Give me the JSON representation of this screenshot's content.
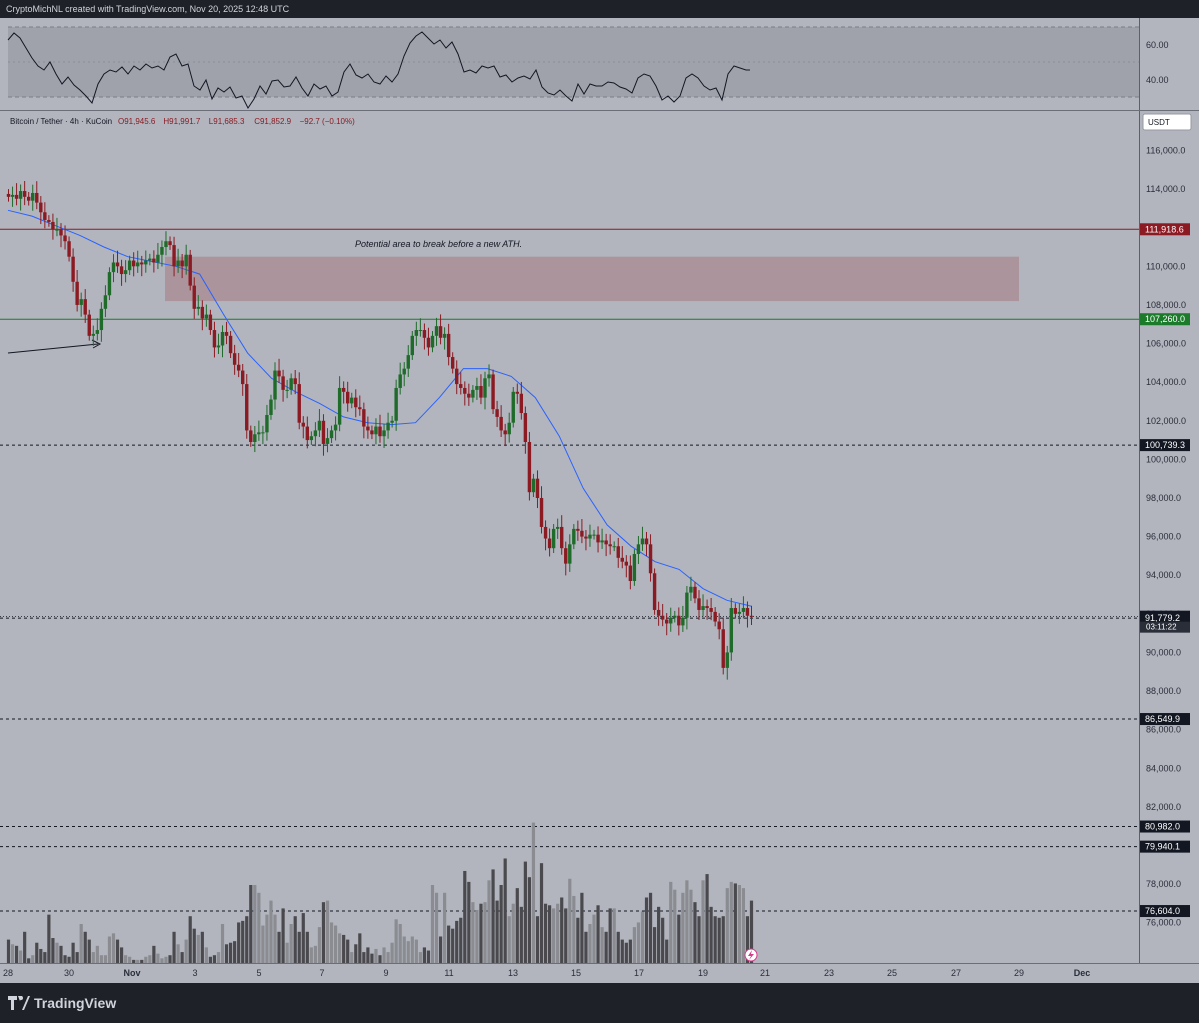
{
  "header": {
    "attribution": "CryptoMichNL created with TradingView.com, Nov 20, 2025 12:48 UTC",
    "symbol_line": "Bitcoin / Tether · 4h · KuCoin",
    "ohlc": {
      "o": "O91,945.6",
      "h": "H91,991.7",
      "l": "L91,685.3",
      "c": "C91,852.9",
      "chg": "−92.7 (−0.10%)"
    }
  },
  "currency_button": "USDT",
  "brand": "TradingView",
  "colors": {
    "background": "#b2b5be",
    "bull": "#1e6b2a",
    "bear": "#8b1a22",
    "ma": "#2962ff",
    "zone": "#a98a92",
    "resistance": "#8b1a22",
    "support": "#1b7b2a",
    "volume_dark": "#4a4a4e",
    "volume_light": "#8a8c92"
  },
  "annotation": "Potential area to break before a new ATH.",
  "rsi": {
    "ticks": [
      "60.00",
      "40.00"
    ]
  },
  "price_axis": {
    "ticks": [
      "116,000.0",
      "114,000.0",
      "112,000.0",
      "110,000.0",
      "108,000.0",
      "106,000.0",
      "104,000.0",
      "102,000.0",
      "100,000.0",
      "98,000.0",
      "96,000.0",
      "94,000.0",
      "92,000.0",
      "90,000.0",
      "88,000.0",
      "86,000.0",
      "84,000.0",
      "82,000.0",
      "80,000.0",
      "78,000.0",
      "76,000.0"
    ],
    "level_labels": [
      {
        "price": 111918.6,
        "text": "111,918.6",
        "style": "resistance"
      },
      {
        "price": 107260.0,
        "text": "107,260.0",
        "style": "support"
      },
      {
        "price": 100739.3,
        "text": "100,739.3",
        "style": "dashed"
      },
      {
        "price": 91852.9,
        "text": "91,852.9",
        "style": "current"
      },
      {
        "price": 91779.2,
        "text": "91,779.2",
        "style": "dashed"
      },
      {
        "price": 86549.9,
        "text": "86,549.9",
        "style": "dashed"
      },
      {
        "price": 80982.0,
        "text": "80,982.0",
        "style": "dashed"
      },
      {
        "price": 79940.1,
        "text": "79,940.1",
        "style": "dashed"
      },
      {
        "price": 76604.0,
        "text": "76,604.0",
        "style": "dashed"
      }
    ],
    "countdown": "03:11:22"
  },
  "time_axis": {
    "ticks": [
      "28",
      "30",
      "Nov",
      "3",
      "5",
      "7",
      "9",
      "11",
      "13",
      "15",
      "17",
      "19",
      "21",
      "23",
      "25",
      "27",
      "29",
      "Dec"
    ]
  },
  "chart_data": {
    "type": "candlestick",
    "title": "Bitcoin / Tether · 4h · KuCoin",
    "ylim": [
      74000,
      118000
    ],
    "interval": "4h",
    "x_start": "2025-10-28",
    "last_bar": "2025-11-20 12:00",
    "closes": [
      113600,
      113700,
      113500,
      113900,
      113600,
      113400,
      113800,
      113300,
      112800,
      112400,
      112300,
      111900,
      111900,
      111600,
      111300,
      110500,
      109200,
      108000,
      108300,
      107500,
      106400,
      106500,
      106700,
      107800,
      108500,
      109700,
      110200,
      110000,
      109600,
      109800,
      110300,
      110000,
      110200,
      110100,
      110300,
      110400,
      110200,
      110600,
      111000,
      111300,
      111100,
      110000,
      110300,
      110000,
      110600,
      109000,
      107800,
      107900,
      107300,
      107500,
      106700,
      105800,
      105900,
      106600,
      106400,
      105500,
      104900,
      104600,
      103900,
      101500,
      100900,
      101300,
      101400,
      101400,
      102300,
      103100,
      104600,
      104300,
      103600,
      103600,
      104200,
      103900,
      101900,
      101700,
      101000,
      101200,
      101500,
      102000,
      100800,
      101100,
      101500,
      101800,
      103700,
      103500,
      102900,
      103200,
      102700,
      102600,
      101700,
      101500,
      101300,
      101700,
      101200,
      101500,
      101900,
      102000,
      103700,
      104400,
      104700,
      105400,
      106400,
      106700,
      106700,
      106300,
      105800,
      106400,
      106900,
      106300,
      106500,
      105300,
      104700,
      103900,
      103700,
      103400,
      103200,
      103600,
      103800,
      103200,
      104200,
      104400,
      102600,
      102200,
      101500,
      101300,
      101900,
      103500,
      103400,
      102400,
      100900,
      98300,
      99000,
      98000,
      96500,
      95900,
      95400,
      96400,
      96500,
      95400,
      94600,
      95600,
      96400,
      96300,
      96000,
      95900,
      96100,
      96100,
      95700,
      95800,
      95600,
      95500,
      95500,
      94900,
      94700,
      94500,
      93700,
      95100,
      95600,
      95900,
      95600,
      94100,
      92200,
      91900,
      91700,
      91500,
      91800,
      91900,
      91400,
      91800,
      93100,
      93400,
      92800,
      92200,
      92400,
      92300,
      92100,
      91600,
      91200,
      89200,
      90000,
      92300,
      92000,
      92100,
      92300,
      91900,
      91852.9
    ],
    "moving_average": {
      "values_approx": [
        112900,
        112600,
        112100,
        111600,
        111000,
        110500,
        110250,
        110000,
        109600,
        107500,
        105500,
        104200,
        103500,
        102900,
        102200,
        101900,
        101800,
        101900,
        103200,
        104700,
        104700,
        104300,
        103200,
        101200,
        98500,
        96600,
        95500,
        94700,
        94300,
        93300,
        92700,
        92400
      ]
    },
    "volume_scale": "unlabeled",
    "resistance": 111918.6,
    "support": 107260.0,
    "zone": {
      "from": 108200,
      "to": 110500
    },
    "dashed_levels": [
      100739.3,
      91779.2,
      86549.9,
      80982.0,
      79940.1,
      76604.0
    ]
  }
}
